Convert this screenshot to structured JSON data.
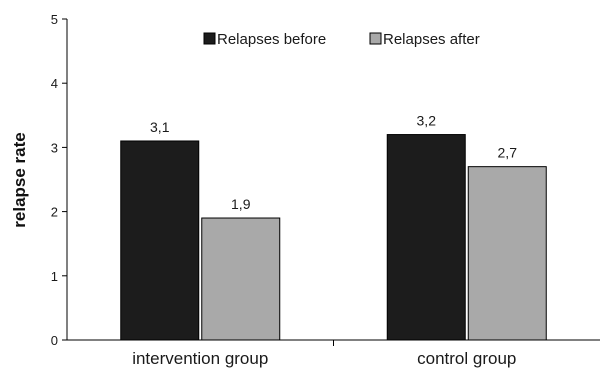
{
  "chart_data": {
    "type": "bar",
    "title": "",
    "xlabel": "",
    "ylabel": "relapse rate",
    "ylim": [
      0,
      5
    ],
    "yticks": [
      0,
      1,
      2,
      3,
      4,
      5
    ],
    "grid": false,
    "legend_position": "top",
    "categories": [
      "intervention group",
      "control group"
    ],
    "series": [
      {
        "name": "Relapses before",
        "values": [
          3.1,
          3.2
        ],
        "labels": [
          "3,1",
          "3,2"
        ],
        "color": "#1c1c1c"
      },
      {
        "name": "Relapses after",
        "values": [
          1.9,
          2.7
        ],
        "labels": [
          "1,9",
          "2,7"
        ],
        "color": "#a9a9a9"
      }
    ]
  }
}
